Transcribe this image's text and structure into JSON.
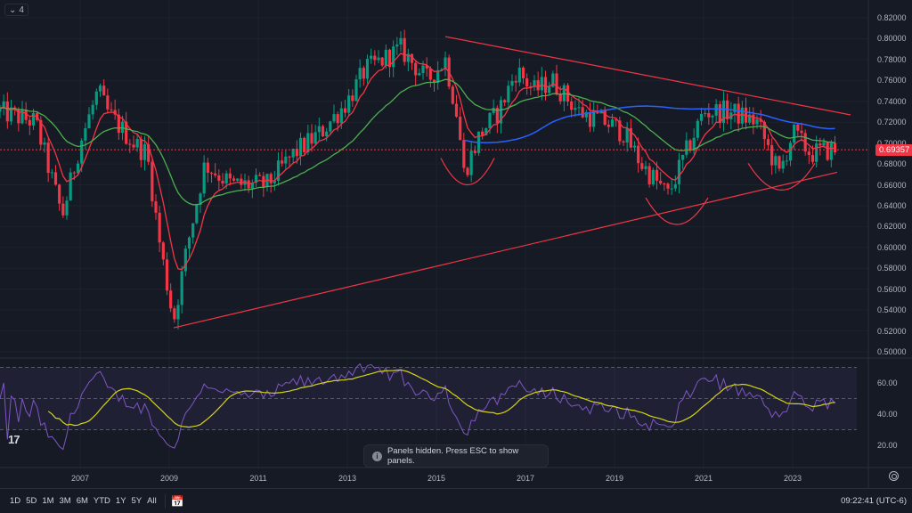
{
  "legend_collapse": {
    "count": "4"
  },
  "price_axis": [
    "0.82000",
    "0.80000",
    "0.78000",
    "0.76000",
    "0.74000",
    "0.72000",
    "0.70000",
    "0.68000",
    "0.66000",
    "0.64000",
    "0.62000",
    "0.60000",
    "0.58000",
    "0.56000",
    "0.54000",
    "0.52000",
    "0.50000"
  ],
  "current_price": "0.69357",
  "rsi_axis": [
    "60.00",
    "40.00",
    "20.00"
  ],
  "time_axis": [
    "2007",
    "2009",
    "2011",
    "2013",
    "2015",
    "2017",
    "2019",
    "2021",
    "2023"
  ],
  "toast": {
    "text": "Panels hidden. Press ESC to show panels."
  },
  "bottom_bar": {
    "ranges": [
      "1D",
      "5D",
      "1M",
      "3M",
      "6M",
      "YTD",
      "1Y",
      "5Y",
      "All"
    ],
    "clock": "09:22:41 (UTC-6)"
  },
  "colors": {
    "up": "#089981",
    "down": "#f23645",
    "ma_fast": "#f23645",
    "ma_mid": "#4caf50",
    "ma_slow": "#2962ff",
    "rsi": "#7e57c2",
    "rsi_ma": "#d4d414",
    "trend": "#f23645"
  },
  "chart_data": {
    "type": "candlestick",
    "interval": "monthly",
    "price_range": [
      0.5,
      0.82
    ],
    "close_path": [
      [
        2005.2,
        0.73
      ],
      [
        2006.0,
        0.72
      ],
      [
        2006.4,
        0.66
      ],
      [
        2006.6,
        0.63
      ],
      [
        2007.0,
        0.7
      ],
      [
        2007.4,
        0.75
      ],
      [
        2007.6,
        0.73
      ],
      [
        2008.2,
        0.7
      ],
      [
        2008.5,
        0.69
      ],
      [
        2008.8,
        0.6
      ],
      [
        2009.1,
        0.53
      ],
      [
        2009.4,
        0.6
      ],
      [
        2009.8,
        0.68
      ],
      [
        2010.4,
        0.66
      ],
      [
        2011.2,
        0.66
      ],
      [
        2011.8,
        0.69
      ],
      [
        2012.4,
        0.71
      ],
      [
        2013.0,
        0.74
      ],
      [
        2013.4,
        0.77
      ],
      [
        2014.2,
        0.79
      ],
      [
        2014.8,
        0.76
      ],
      [
        2015.2,
        0.78
      ],
      [
        2015.5,
        0.72
      ],
      [
        2015.6,
        0.67
      ],
      [
        2016.0,
        0.71
      ],
      [
        2016.4,
        0.73
      ],
      [
        2016.8,
        0.77
      ],
      [
        2017.2,
        0.75
      ],
      [
        2017.6,
        0.76
      ],
      [
        2018.2,
        0.73
      ],
      [
        2018.8,
        0.72
      ],
      [
        2019.2,
        0.71
      ],
      [
        2019.6,
        0.68
      ],
      [
        2020.2,
        0.65
      ],
      [
        2020.6,
        0.69
      ],
      [
        2021.0,
        0.73
      ],
      [
        2021.6,
        0.73
      ],
      [
        2022.2,
        0.72
      ],
      [
        2022.7,
        0.67
      ],
      [
        2023.0,
        0.71
      ],
      [
        2023.4,
        0.69
      ],
      [
        2023.9,
        0.694
      ]
    ],
    "trendlines": [
      [
        [
          2009.1,
          0.523
        ],
        [
          2024.0,
          0.672
        ]
      ],
      [
        [
          2015.2,
          0.802
        ],
        [
          2024.3,
          0.727
        ]
      ]
    ],
    "cups": [
      [
        2015.7,
        0.66,
        0.6
      ],
      [
        2020.4,
        0.622,
        0.7
      ],
      [
        2022.75,
        0.655,
        0.75
      ]
    ],
    "rsi_bands": [
      70,
      50,
      30
    ]
  }
}
